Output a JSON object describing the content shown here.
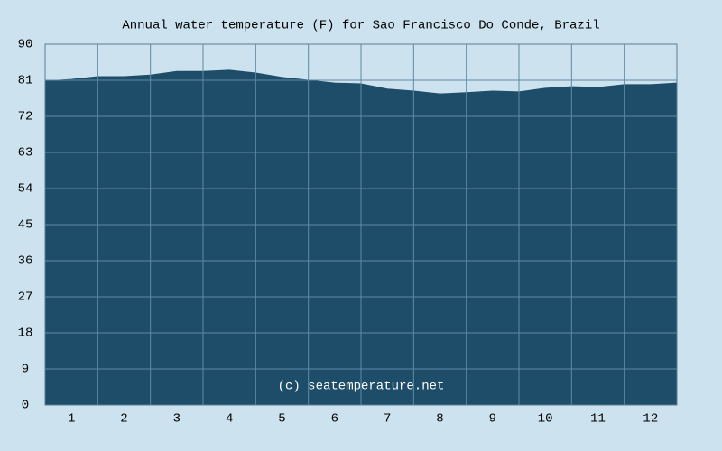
{
  "chart_data": {
    "type": "area",
    "title": "Annual water temperature (F) for Sao Francisco Do Conde, Brazil",
    "annotation": "(c) seatemperature.net",
    "x": [
      0.5,
      1,
      1.5,
      2,
      2.5,
      3,
      3.5,
      4,
      4.5,
      5,
      5.5,
      6,
      6.5,
      7,
      7.5,
      8,
      8.5,
      9,
      9.5,
      10,
      10.5,
      11,
      11.5,
      12,
      12.5
    ],
    "series": [
      {
        "color": "#1e4d69",
        "values": [
          80.8,
          81.2,
          81.9,
          81.9,
          82.3,
          83.2,
          83.2,
          83.5,
          82.8,
          81.7,
          81.0,
          80.3,
          80.1,
          78.8,
          78.3,
          77.6,
          77.9,
          78.3,
          78.1,
          79.0,
          79.4,
          79.2,
          79.9,
          79.9,
          80.3
        ]
      }
    ],
    "xlim": [
      0.5,
      12.5
    ],
    "xticks": [
      1,
      2,
      3,
      4,
      5,
      6,
      7,
      8,
      9,
      10,
      11,
      12
    ],
    "ylim": [
      0,
      90
    ],
    "yticks": [
      0,
      9,
      18,
      27,
      36,
      45,
      54,
      63,
      72,
      81,
      90
    ],
    "grid": true
  }
}
